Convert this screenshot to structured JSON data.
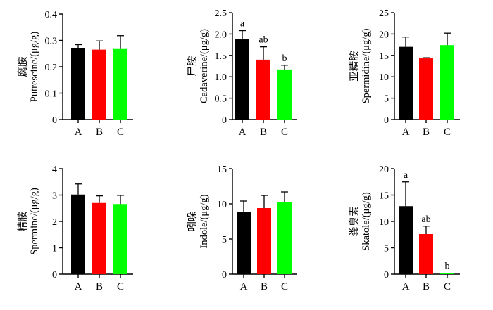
{
  "chart_data": [
    {
      "type": "bar",
      "ylabel_cn": "腐胺",
      "ylabel": "Putrescine/(μg/g)",
      "categories": [
        "A",
        "B",
        "C"
      ],
      "values": [
        0.272,
        0.265,
        0.27
      ],
      "errors": [
        0.012,
        0.033,
        0.048
      ],
      "ylim": [
        0,
        0.4
      ],
      "yticks": [
        "0",
        "0.1",
        "0.2",
        "0.3",
        "0.4"
      ],
      "significance": [
        "",
        "",
        ""
      ]
    },
    {
      "type": "bar",
      "ylabel_cn": "尸胺",
      "ylabel": "Cadaverine/(μg/g)",
      "categories": [
        "A",
        "B",
        "C"
      ],
      "values": [
        1.88,
        1.4,
        1.17
      ],
      "errors": [
        0.2,
        0.3,
        0.1
      ],
      "ylim": [
        0,
        2.5
      ],
      "yticks": [
        "0",
        "0.5",
        "1.0",
        "1.5",
        "2.0",
        "2.5"
      ],
      "significance": [
        "a",
        "ab",
        "b"
      ]
    },
    {
      "type": "bar",
      "ylabel_cn": "亚精胺",
      "ylabel": "Spermidine/(μg/g)",
      "categories": [
        "A",
        "B",
        "C"
      ],
      "values": [
        17.0,
        14.3,
        17.4
      ],
      "errors": [
        2.3,
        0.15,
        2.8
      ],
      "ylim": [
        0,
        25
      ],
      "yticks": [
        "0",
        "5",
        "10",
        "15",
        "20",
        "25"
      ],
      "significance": [
        "",
        "",
        ""
      ]
    },
    {
      "type": "bar",
      "ylabel_cn": "精胺",
      "ylabel": "Spermine/(μg/g)",
      "categories": [
        "A",
        "B",
        "C"
      ],
      "values": [
        3.02,
        2.7,
        2.66
      ],
      "errors": [
        0.4,
        0.27,
        0.33
      ],
      "ylim": [
        0,
        4
      ],
      "yticks": [
        "0",
        "1",
        "2",
        "3",
        "4"
      ],
      "significance": [
        "",
        "",
        ""
      ]
    },
    {
      "type": "bar",
      "ylabel_cn": "吲哚",
      "ylabel": "Indole/(μg/g)",
      "categories": [
        "A",
        "B",
        "C"
      ],
      "values": [
        8.8,
        9.4,
        10.3
      ],
      "errors": [
        1.6,
        1.8,
        1.4
      ],
      "ylim": [
        0,
        15
      ],
      "yticks": [
        "0",
        "5",
        "10",
        "15"
      ],
      "significance": [
        "",
        "",
        ""
      ]
    },
    {
      "type": "bar",
      "ylabel_cn": "粪臭素",
      "ylabel": "Skatole/(μg/g)",
      "categories": [
        "A",
        "B",
        "C"
      ],
      "values": [
        12.9,
        7.6,
        0.2
      ],
      "errors": [
        4.6,
        1.5,
        0.0
      ],
      "ylim": [
        0,
        20
      ],
      "yticks": [
        "0",
        "5",
        "10",
        "15",
        "20"
      ],
      "significance": [
        "a",
        "ab",
        "b"
      ]
    }
  ],
  "bar_colors": [
    "#000000",
    "#ff0000",
    "#00ff00"
  ]
}
